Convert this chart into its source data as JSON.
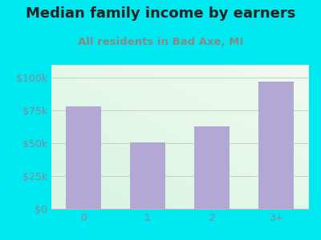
{
  "title": "Median family income by earners",
  "subtitle": "All residents in Bad Axe, MI",
  "categories": [
    "0",
    "1",
    "2",
    "3+"
  ],
  "values": [
    78000,
    51000,
    63000,
    97000
  ],
  "bar_color": "#b3a8d4",
  "background_outer": "#00e8f0",
  "title_color": "#222222",
  "subtitle_color": "#888888",
  "tick_color": "#888899",
  "ylim": [
    0,
    110000
  ],
  "yticks": [
    0,
    25000,
    50000,
    75000,
    100000
  ],
  "ytick_labels": [
    "$0",
    "$25k",
    "$50k",
    "$75k",
    "$100k"
  ],
  "title_fontsize": 13,
  "subtitle_fontsize": 9.5,
  "tick_fontsize": 9
}
